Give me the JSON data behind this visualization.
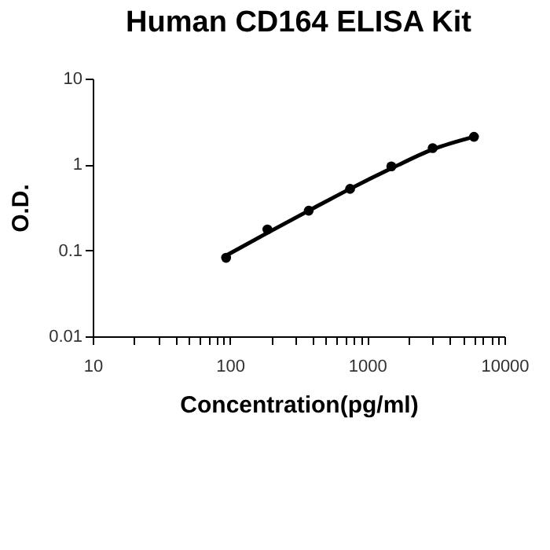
{
  "chart_data": {
    "type": "scatter",
    "title": "Human CD164 ELISA Kit",
    "xlabel": "Concentration(pg/ml)",
    "ylabel": "O.D.",
    "log": "xy",
    "grid": false,
    "xlim": [
      10,
      10000
    ],
    "ylim": [
      0.01,
      10
    ],
    "xticks": [
      10,
      {
        "value": 20,
        "label": null
      },
      {
        "value": 30,
        "label": null
      },
      {
        "value": 40,
        "label": null
      },
      {
        "value": 50,
        "label": null
      },
      {
        "value": 60,
        "label": null
      },
      {
        "value": 70,
        "label": null
      },
      {
        "value": 80,
        "label": null
      },
      {
        "value": 90,
        "label": null
      },
      100,
      {
        "value": 200,
        "label": null
      },
      {
        "value": 300,
        "label": null
      },
      {
        "value": 400,
        "label": null
      },
      {
        "value": 500,
        "label": null
      },
      {
        "value": 600,
        "label": null
      },
      {
        "value": 700,
        "label": null
      },
      {
        "value": 800,
        "label": null
      },
      {
        "value": 900,
        "label": null
      },
      1000,
      {
        "value": 2000,
        "label": null
      },
      {
        "value": 3000,
        "label": null
      },
      {
        "value": 4000,
        "label": null
      },
      {
        "value": 5000,
        "label": null
      },
      {
        "value": 6000,
        "label": null
      },
      {
        "value": 7000,
        "label": null
      },
      {
        "value": 8000,
        "label": null
      },
      {
        "value": 9000,
        "label": null
      },
      10000
    ],
    "yticks": [
      0.01,
      0.1,
      1,
      10
    ],
    "series": [
      {
        "type": "scatter",
        "color": "#000000",
        "marker": "circle",
        "x": [
          93.75,
          187.5,
          375,
          750,
          1500,
          3000,
          6000
        ],
        "values": [
          0.082,
          0.175,
          0.29,
          0.52,
          0.95,
          1.55,
          2.1
        ]
      },
      {
        "type": "line",
        "color": "#000000",
        "line_style": "solid",
        "marker": "none",
        "x": [
          93.75,
          187.5,
          375,
          750,
          1500,
          3000,
          6000
        ],
        "values": [
          0.087,
          0.16,
          0.29,
          0.52,
          0.9,
          1.5,
          2.1
        ]
      }
    ]
  }
}
